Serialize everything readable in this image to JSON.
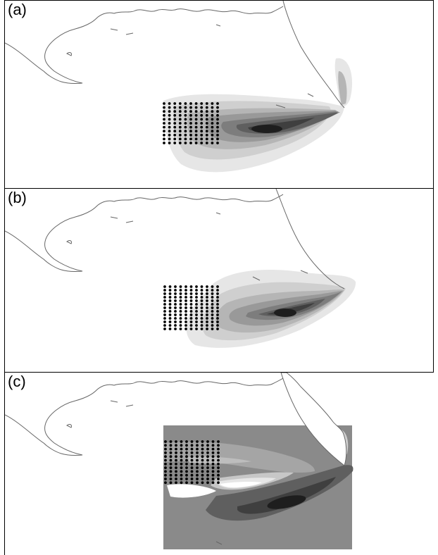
{
  "panels": [
    {
      "label": "(a)"
    },
    {
      "label": "(b)"
    },
    {
      "label": "(c)"
    }
  ],
  "colors": {
    "coast": "#666666",
    "dots": "#000000",
    "shade_levels": [
      "#e6e6e6",
      "#cfcfcf",
      "#b5b5b5",
      "#999999",
      "#7d7d7d",
      "#5f5f5f",
      "#3f3f3f",
      "#1e1e1e"
    ],
    "panel_c_background": "#8a8a8a"
  },
  "icons": {
    "station_marker": "filled-dot"
  }
}
